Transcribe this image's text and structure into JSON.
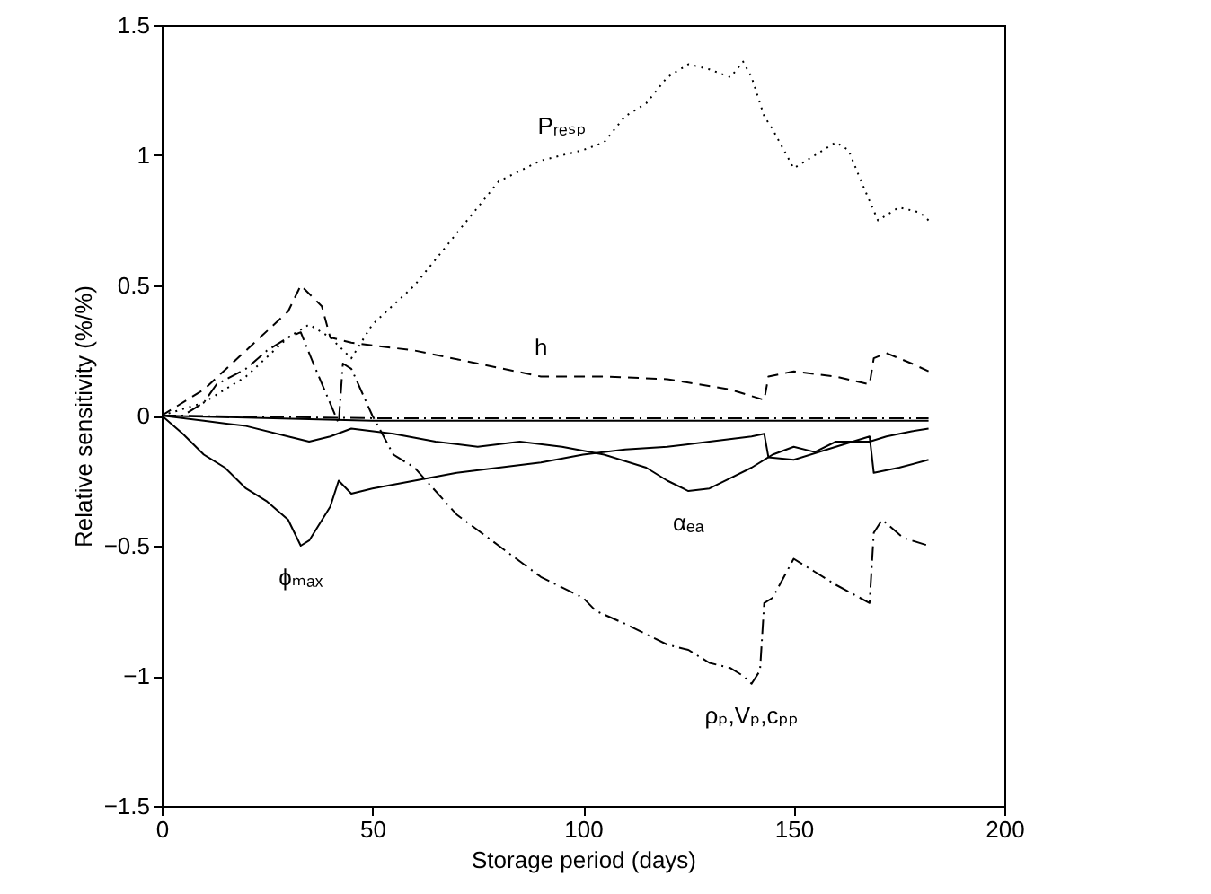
{
  "chart_data": {
    "type": "line",
    "xlabel": "Storage period (days)",
    "ylabel": "Relative sensitivity (%/%)",
    "xlim": [
      0,
      200
    ],
    "xticks": [
      0,
      50,
      100,
      150,
      200
    ],
    "ylim": [
      -1.5,
      1.5
    ],
    "yticks": [
      -1.5,
      -1,
      -0.5,
      0,
      0.5,
      1,
      1.5
    ],
    "grid": false,
    "series": [
      {
        "color": "#000000",
        "line_style": "dotted",
        "x": [
          0,
          10,
          20,
          30,
          35,
          40,
          45,
          50,
          60,
          70,
          80,
          90,
          95,
          100,
          105,
          110,
          115,
          120,
          125,
          130,
          135,
          138,
          140,
          143,
          145,
          150,
          155,
          160,
          163,
          166,
          170,
          175,
          180,
          182
        ],
        "values": [
          0,
          0.05,
          0.15,
          0.3,
          0.35,
          0.3,
          0.22,
          0.35,
          0.5,
          0.7,
          0.9,
          0.98,
          1.0,
          1.02,
          1.05,
          1.15,
          1.2,
          1.3,
          1.35,
          1.33,
          1.3,
          1.36,
          1.3,
          1.15,
          1.1,
          0.95,
          1.0,
          1.05,
          1.02,
          0.9,
          0.75,
          0.8,
          0.78,
          0.75
        ]
      },
      {
        "color": "#000000",
        "line_style": "dashed",
        "x": [
          0,
          10,
          20,
          30,
          33,
          38,
          40,
          45,
          60,
          75,
          90,
          105,
          120,
          135,
          143,
          144,
          150,
          160,
          168,
          169,
          172,
          178,
          182
        ],
        "values": [
          0,
          0.1,
          0.25,
          0.4,
          0.5,
          0.42,
          0.3,
          0.28,
          0.25,
          0.2,
          0.15,
          0.15,
          0.14,
          0.1,
          0.06,
          0.15,
          0.17,
          0.15,
          0.12,
          0.22,
          0.24,
          0.2,
          0.17
        ]
      },
      {
        "color": "#000000",
        "line_style": "dashdot",
        "x": [
          0,
          5,
          10,
          13,
          20,
          25,
          30,
          33,
          36,
          42,
          43,
          45,
          50,
          55,
          60,
          70,
          80,
          90,
          100,
          103,
          110,
          120,
          125,
          130,
          135,
          138,
          140,
          142,
          143,
          145,
          150,
          155,
          160,
          168,
          169,
          171,
          176,
          182
        ],
        "values": [
          0,
          0,
          0.05,
          0.12,
          0.18,
          0.25,
          0.3,
          0.32,
          0.2,
          -0.03,
          0.2,
          0.18,
          0.0,
          -0.15,
          -0.2,
          -0.38,
          -0.5,
          -0.62,
          -0.7,
          -0.75,
          -0.8,
          -0.88,
          -0.9,
          -0.95,
          -0.97,
          -1.0,
          -1.03,
          -0.98,
          -0.72,
          -0.7,
          -0.55,
          -0.6,
          -0.65,
          -0.72,
          -0.45,
          -0.4,
          -0.47,
          -0.5
        ]
      },
      {
        "color": "#000000",
        "line_style": "solid",
        "x": [
          0,
          5,
          10,
          15,
          20,
          25,
          30,
          33,
          35,
          40,
          42,
          45,
          50,
          60,
          70,
          80,
          90,
          100,
          110,
          120,
          130,
          140,
          143,
          144,
          150,
          160,
          168,
          169,
          175,
          182
        ],
        "values": [
          0,
          -0.07,
          -0.15,
          -0.2,
          -0.28,
          -0.33,
          -0.4,
          -0.5,
          -0.48,
          -0.35,
          -0.25,
          -0.3,
          -0.28,
          -0.25,
          -0.22,
          -0.2,
          -0.18,
          -0.15,
          -0.13,
          -0.12,
          -0.1,
          -0.08,
          -0.07,
          -0.16,
          -0.17,
          -0.12,
          -0.08,
          -0.22,
          -0.2,
          -0.17
        ]
      },
      {
        "color": "#000000",
        "line_style": "solid",
        "x": [
          0,
          10,
          20,
          30,
          35,
          40,
          45,
          55,
          65,
          75,
          85,
          95,
          105,
          115,
          120,
          125,
          130,
          135,
          140,
          145,
          150,
          155,
          160,
          168,
          172,
          178,
          182
        ],
        "values": [
          0,
          -0.02,
          -0.04,
          -0.08,
          -0.1,
          -0.08,
          -0.05,
          -0.07,
          -0.1,
          -0.12,
          -0.1,
          -0.12,
          -0.15,
          -0.2,
          -0.25,
          -0.29,
          -0.28,
          -0.24,
          -0.2,
          -0.15,
          -0.12,
          -0.14,
          -0.1,
          -0.1,
          -0.08,
          -0.06,
          -0.05
        ]
      },
      {
        "color": "#000000",
        "line_style": "dashdot",
        "x": [
          0,
          50,
          100,
          150,
          182
        ],
        "values": [
          0,
          -0.01,
          -0.01,
          -0.01,
          -0.01
        ]
      },
      {
        "color": "#000000",
        "line_style": "solid",
        "x": [
          0,
          50,
          100,
          150,
          182
        ],
        "values": [
          0,
          -0.02,
          -0.02,
          -0.02,
          -0.02
        ]
      }
    ],
    "annotations": [
      {
        "text": "Pᵣₑₛₚ",
        "x": 95,
        "y": 1.0
      },
      {
        "text": "h",
        "x": 90,
        "y": 0.15
      },
      {
        "text": "αₑₐ",
        "x": 125,
        "y": -0.29
      },
      {
        "text": "ϕₘₐₓ",
        "x": 33,
        "y": -0.5
      },
      {
        "text": "ρₚ,Vₚ,cₚₚ",
        "x": 140,
        "y": -1.03
      }
    ]
  }
}
